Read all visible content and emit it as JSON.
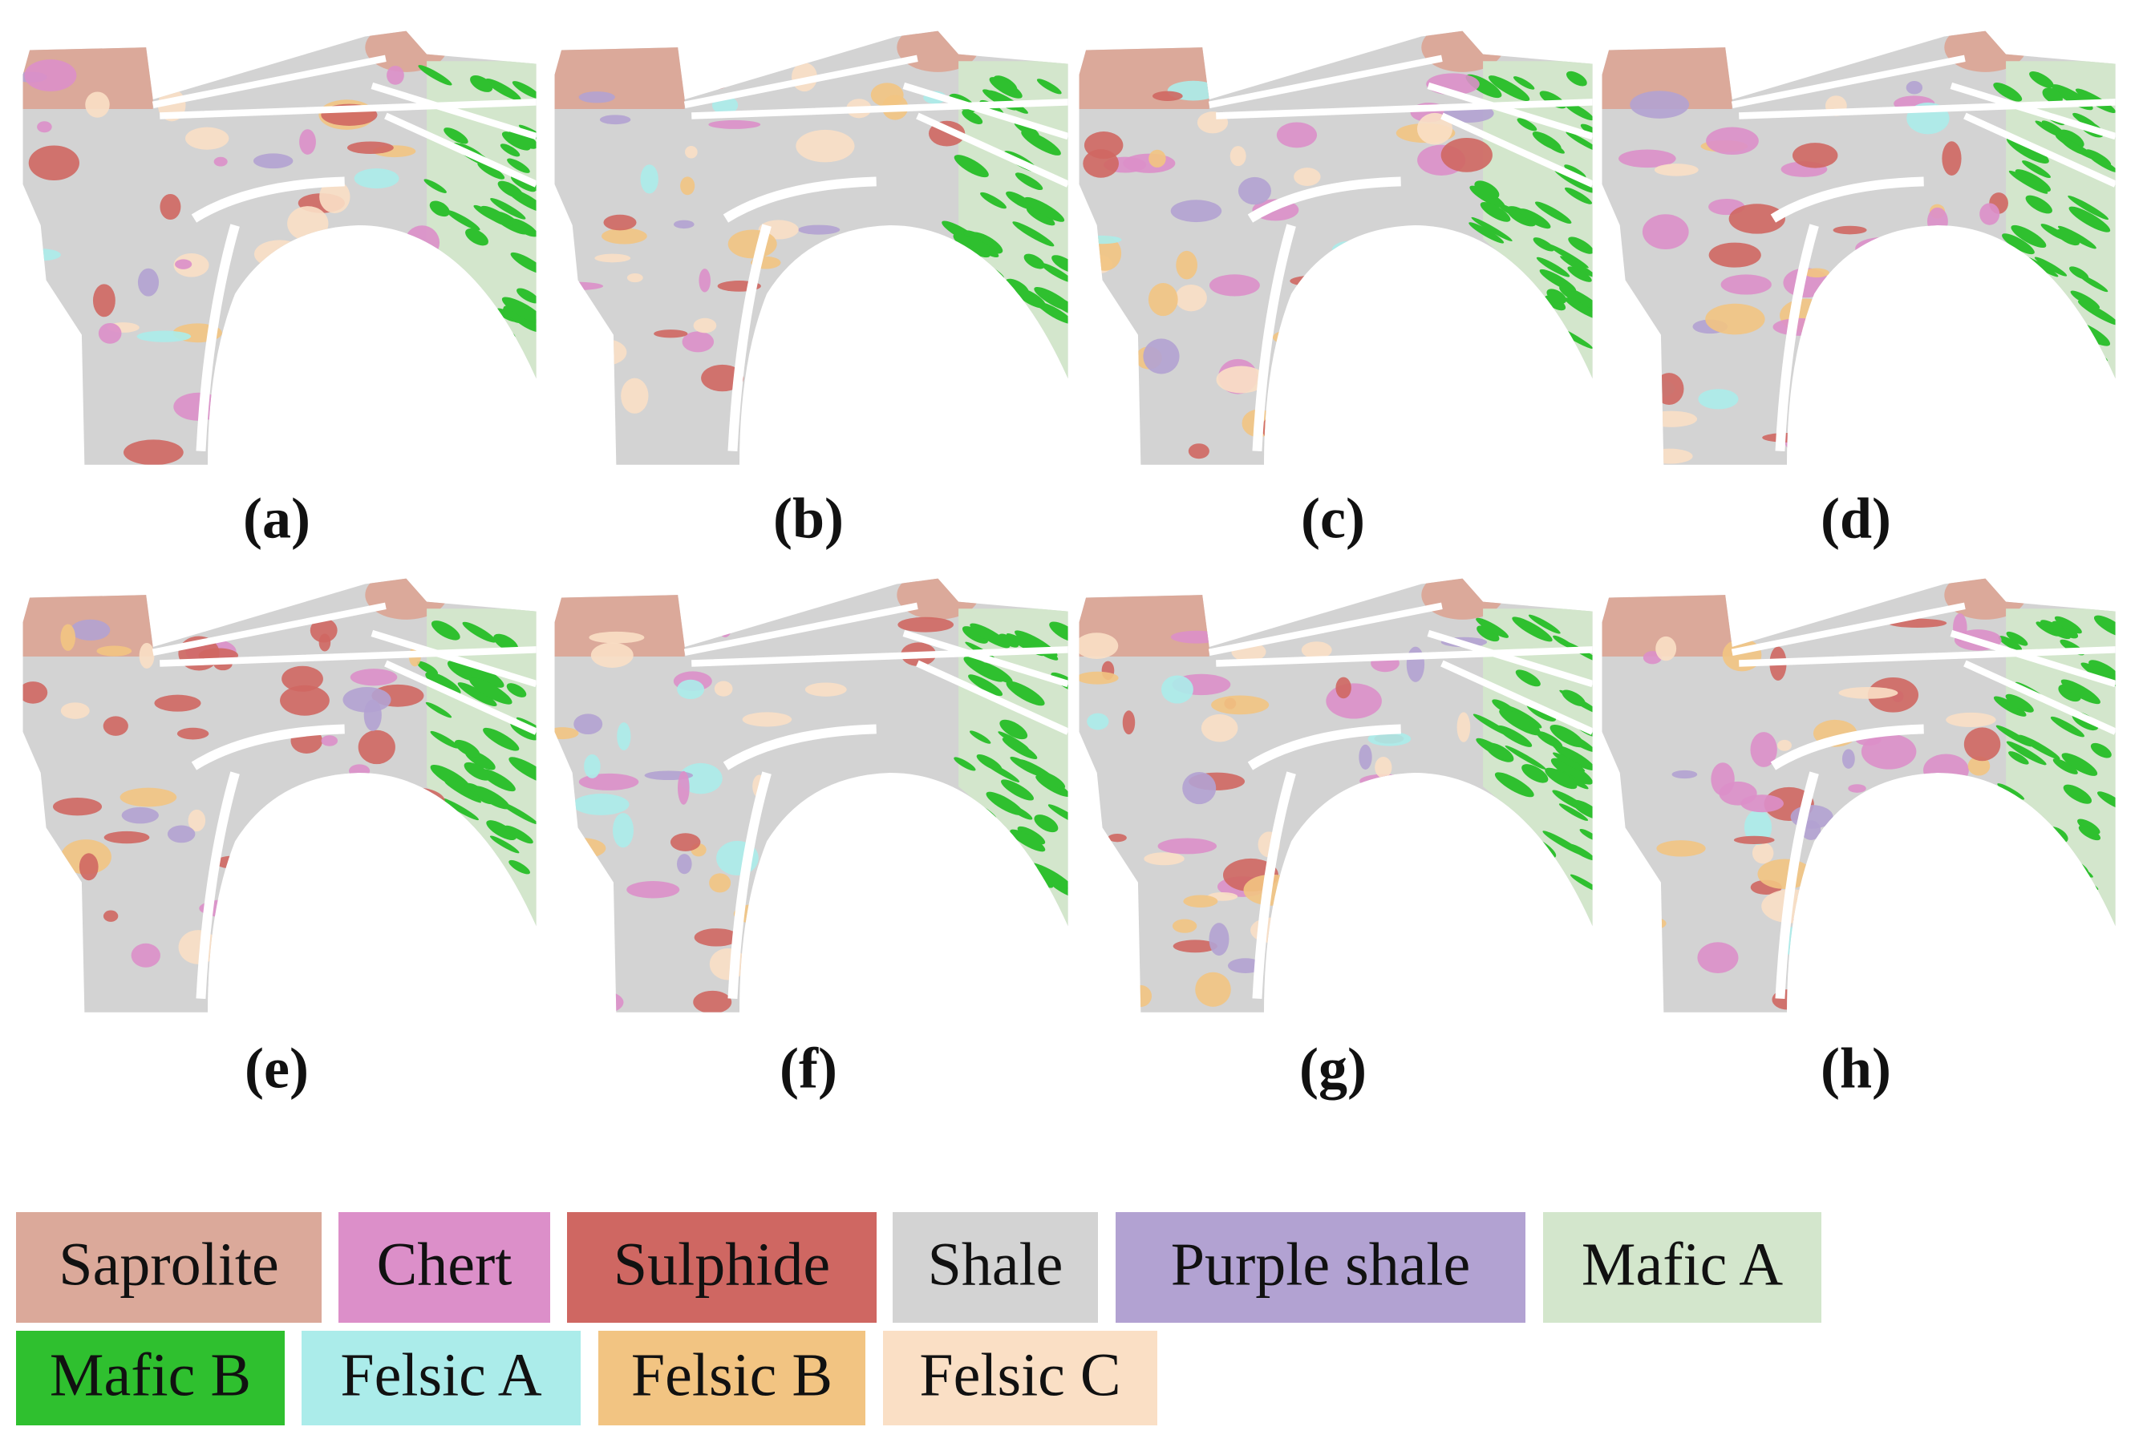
{
  "panels": [
    {
      "label": "(a)"
    },
    {
      "label": "(b)"
    },
    {
      "label": "(c)"
    },
    {
      "label": "(d)"
    },
    {
      "label": "(e)"
    },
    {
      "label": "(f)"
    },
    {
      "label": "(g)"
    },
    {
      "label": "(h)"
    }
  ],
  "legend": [
    {
      "name": "Saprolite",
      "color": "#dba99a"
    },
    {
      "name": "Chert",
      "color": "#dc8fc9"
    },
    {
      "name": "Sulphide",
      "color": "#cf6762"
    },
    {
      "name": "Shale",
      "color": "#d3d3d3"
    },
    {
      "name": "Purple shale",
      "color": "#b2a2d2"
    },
    {
      "name": "Mafic A",
      "color": "#d3e6cc"
    },
    {
      "name": "Mafic B",
      "color": "#2fc02f"
    },
    {
      "name": "Felsic A",
      "color": "#abecea"
    },
    {
      "name": "Felsic B",
      "color": "#f2c482"
    },
    {
      "name": "Felsic C",
      "color": "#fadfc5"
    }
  ]
}
